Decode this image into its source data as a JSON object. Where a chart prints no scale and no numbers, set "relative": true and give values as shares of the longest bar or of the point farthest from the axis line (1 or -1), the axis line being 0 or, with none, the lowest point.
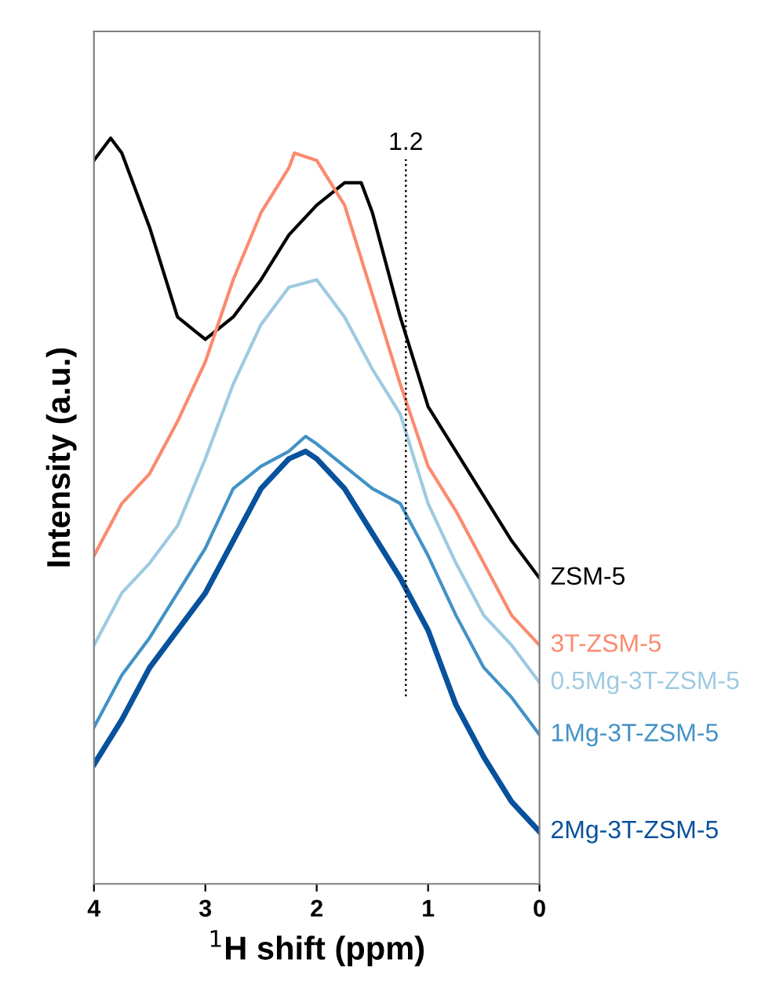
{
  "chart_data": {
    "type": "line",
    "relative": true,
    "xlabel": "$^{1}$H shift (ppm)",
    "ylabel": "Intensity (a.u.)",
    "xlim": [
      4,
      0
    ],
    "xticks": [
      4,
      3,
      2,
      1,
      0
    ],
    "grid": false,
    "legend": false,
    "ref_lines": [
      {
        "axis": "x",
        "value": 1.2,
        "label": "1.2",
        "color": "#000000",
        "line_style": "dotted"
      }
    ],
    "series": [
      {
        "name": "ZSM-5",
        "color": "#000000",
        "x": [
          4,
          3.85,
          3.75,
          3.5,
          3.25,
          3.0,
          2.75,
          2.5,
          2.25,
          2.0,
          1.75,
          1.6,
          1.5,
          1.25,
          1.0,
          0.75,
          0.5,
          0.25,
          0
        ],
        "values": [
          0.97,
          1.0,
          0.98,
          0.88,
          0.76,
          0.73,
          0.76,
          0.81,
          0.87,
          0.91,
          0.94,
          0.94,
          0.9,
          0.76,
          0.64,
          0.58,
          0.52,
          0.46,
          0.41
        ]
      },
      {
        "name": "3T-ZSM-5",
        "color": "#fb8a6f",
        "x": [
          4,
          3.75,
          3.5,
          3.25,
          3.0,
          2.75,
          2.5,
          2.25,
          2.2,
          2.0,
          1.75,
          1.5,
          1.25,
          1.0,
          0.75,
          0.5,
          0.25,
          0
        ],
        "values": [
          0.44,
          0.51,
          0.55,
          0.62,
          0.7,
          0.81,
          0.9,
          0.96,
          0.98,
          0.97,
          0.91,
          0.79,
          0.67,
          0.56,
          0.5,
          0.43,
          0.36,
          0.32
        ]
      },
      {
        "name": "0.5Mg-3T-ZSM-5",
        "color": "#9ecae1",
        "x": [
          4,
          3.75,
          3.5,
          3.25,
          3.0,
          2.75,
          2.5,
          2.25,
          2.0,
          1.75,
          1.5,
          1.25,
          1.0,
          0.75,
          0.5,
          0.25,
          0
        ],
        "values": [
          0.32,
          0.39,
          0.43,
          0.48,
          0.57,
          0.67,
          0.75,
          0.8,
          0.81,
          0.76,
          0.69,
          0.63,
          0.51,
          0.43,
          0.36,
          0.32,
          0.27
        ]
      },
      {
        "name": "1Mg-3T-ZSM-5",
        "color": "#4292c6",
        "x": [
          4,
          3.75,
          3.5,
          3.25,
          3.0,
          2.75,
          2.5,
          2.25,
          2.1,
          2.0,
          1.75,
          1.5,
          1.25,
          1.0,
          0.75,
          0.5,
          0.25,
          0
        ],
        "values": [
          0.21,
          0.28,
          0.33,
          0.39,
          0.45,
          0.53,
          0.56,
          0.58,
          0.6,
          0.59,
          0.56,
          0.53,
          0.51,
          0.44,
          0.36,
          0.29,
          0.25,
          0.2
        ]
      },
      {
        "name": "2Mg-3T-ZSM-5",
        "color": "#08519c",
        "x": [
          4,
          3.75,
          3.5,
          3.25,
          3.0,
          2.75,
          2.5,
          2.25,
          2.1,
          2.0,
          1.75,
          1.5,
          1.25,
          1.0,
          0.75,
          0.5,
          0.25,
          0
        ],
        "values": [
          0.16,
          0.22,
          0.29,
          0.34,
          0.39,
          0.46,
          0.53,
          0.57,
          0.58,
          0.57,
          0.53,
          0.47,
          0.41,
          0.34,
          0.24,
          0.17,
          0.11,
          0.07
        ]
      }
    ]
  }
}
